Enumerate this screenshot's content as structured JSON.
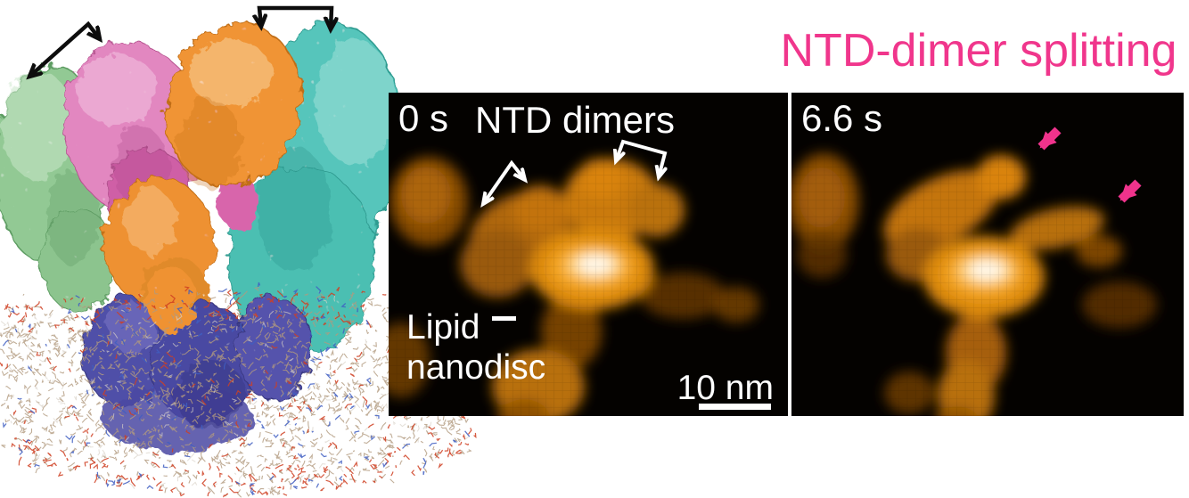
{
  "figure_title": {
    "label": "NTD-dimer splitting",
    "color": "#F0368C"
  },
  "structure_panel": {
    "subunit_colors": {
      "ntd_lobe_green": "#92C994",
      "ntd_lobe_pink": "#E287C0",
      "subunit_orange": "#F09434",
      "subunit_teal": "#57C5BB",
      "tmd_blue": "#504FA8"
    },
    "membrane_colors": {
      "lipid_tail_tan": "#B29A7E",
      "head_group_red": "#CF4022",
      "head_group_blue": "#3F5EC2",
      "head_group_gray": "#D8D2C8"
    },
    "dimer_bracket_color": "#0D0D0D"
  },
  "afm_panels": {
    "background": "#040200",
    "blob_orange": "#E8920F",
    "peak_white": "#FFFFFF",
    "annotation_color": "#FFFFFF",
    "first": {
      "time_label": "0 s",
      "dimers_label": "NTD dimers",
      "lipid_label_line1": "Lipid",
      "lipid_label_line2": "nanodisc",
      "scale_bar_label": "10 nm"
    },
    "second": {
      "time_label": "6.6 s",
      "split_arrow_color": "#F0338C"
    }
  }
}
